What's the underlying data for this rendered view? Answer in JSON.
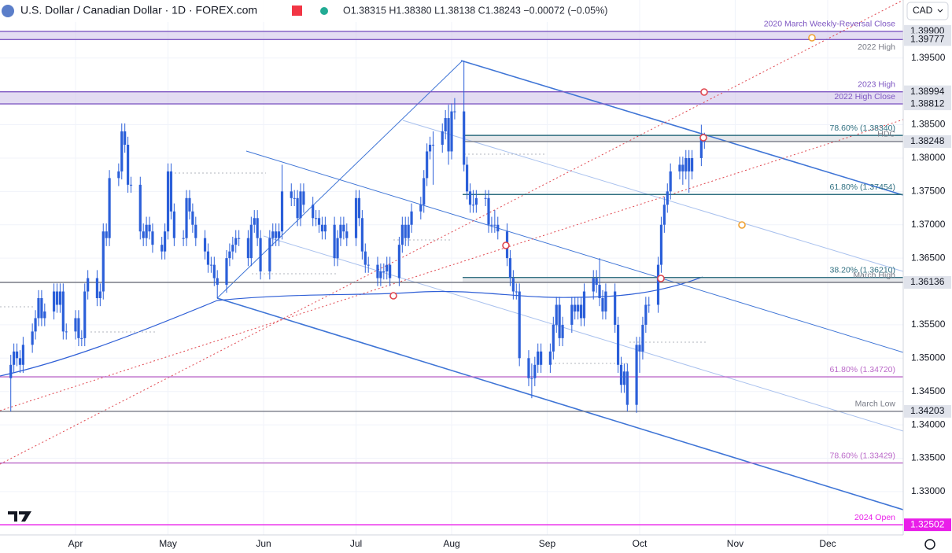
{
  "chart_data": {
    "type": "candlestick",
    "symbol": "U.S. Dollar / Canadian Dollar · 1D · FOREX.com",
    "ohlc_text": "O1.38315 H1.38380 L1.38138 C1.38243 −0.00072 (−0.05%)",
    "currency": "CAD",
    "annotations": [
      "2022 High"
    ],
    "color": "#2b5fd9",
    "grid": true,
    "xlim": [
      67.5,
      360.5
    ],
    "xticks": [
      {
        "value": 92,
        "label": "Apr"
      },
      {
        "value": 122,
        "label": "May"
      },
      {
        "value": 153,
        "label": "Jun"
      },
      {
        "value": 183,
        "label": "Jul"
      },
      {
        "value": 214,
        "label": "Aug"
      },
      {
        "value": 245,
        "label": "Sep"
      },
      {
        "value": 275,
        "label": "Oct"
      },
      {
        "value": 306,
        "label": "Nov"
      },
      {
        "value": 336,
        "label": "Dec"
      }
    ],
    "ylim": [
      1.3235,
      1.4037
    ],
    "yticks": [
      {
        "value": 1.33,
        "label": "1.33000"
      },
      {
        "value": 1.335,
        "label": "1.33500"
      },
      {
        "value": 1.34,
        "label": "1.34000"
      },
      {
        "value": 1.345,
        "label": "1.34500"
      },
      {
        "value": 1.35,
        "label": "1.35000"
      },
      {
        "value": 1.355,
        "label": "1.35500"
      },
      {
        "value": 1.365,
        "label": "1.36500"
      },
      {
        "value": 1.37,
        "label": "1.37000"
      },
      {
        "value": 1.375,
        "label": "1.37500"
      },
      {
        "value": 1.38,
        "label": "1.38000"
      },
      {
        "value": 1.385,
        "label": "1.38500"
      },
      {
        "value": 1.395,
        "label": "1.39500"
      }
    ],
    "levels": [
      {
        "value": 1.399,
        "price_label": "1.39900",
        "text": "2020 March Weekly-Reversal Close",
        "color": "#7e57c2",
        "band": "#d1c4e9"
      },
      {
        "value": 1.39777,
        "price_label": "1.39777",
        "color": "#7e57c2"
      },
      {
        "value": 1.38994,
        "price_label": "1.38994",
        "text": "2023 High",
        "color": "#7e57c2",
        "band": "#d1c4e9"
      },
      {
        "value": 1.38812,
        "price_label": "1.38812",
        "text": "2022 High Close",
        "color": "#7e57c2"
      },
      {
        "value": 1.3834,
        "text": "78.60% (1.38340)",
        "color": "#2f6f80",
        "band": "#d6d8de",
        "fib": true
      },
      {
        "value": 1.38248,
        "price_label": "1.38248",
        "text": "HDC",
        "color": "#787b86",
        "fib": true
      },
      {
        "value": 1.37454,
        "text": "61.80% (1.37454)",
        "color": "#2f6f80",
        "fib": true
      },
      {
        "value": 1.3621,
        "text": "38.20% (1.36210)",
        "color": "#2f6f80",
        "band": "#d6d8de",
        "fib": true
      },
      {
        "value": 1.36136,
        "price_label": "1.36136",
        "text": "March High",
        "color": "#787b86"
      },
      {
        "value": 1.3472,
        "text": "61.80% (1.34720)",
        "color": "#ba68c8"
      },
      {
        "value": 1.34203,
        "price_label": "1.34203",
        "text": "March Low",
        "color": "#787b86"
      },
      {
        "value": 1.33429,
        "text": "78.60% (1.33429)",
        "color": "#ba68c8"
      },
      {
        "value": 1.32502,
        "price_label": "1.32502",
        "text": "2024 Open",
        "color": "#e91ee9"
      }
    ],
    "x": [
      71,
      72,
      73,
      74,
      75,
      78,
      79,
      80,
      81,
      82,
      85,
      86,
      87,
      88,
      89,
      92,
      93,
      94,
      95,
      96,
      99,
      100,
      101,
      102,
      103,
      106,
      107,
      108,
      109,
      110,
      113,
      114,
      115,
      116,
      117,
      120,
      121,
      122,
      123,
      124,
      127,
      128,
      129,
      130,
      131,
      134,
      135,
      136,
      137,
      138,
      141,
      142,
      143,
      144,
      145,
      148,
      149,
      150,
      151,
      152,
      155,
      156,
      157,
      158,
      159,
      162,
      163,
      164,
      165,
      166,
      169,
      170,
      171,
      172,
      173,
      176,
      177,
      178,
      179,
      180,
      183,
      184,
      185,
      186,
      187,
      190,
      191,
      192,
      193,
      194,
      197,
      198,
      199,
      200,
      201,
      204,
      205,
      206,
      207,
      208,
      211,
      212,
      213,
      214,
      215,
      218,
      219,
      220,
      221,
      222,
      225,
      226,
      227,
      228,
      229,
      232,
      233,
      234,
      235,
      236,
      239,
      240,
      241,
      242,
      243,
      246,
      247,
      248,
      249,
      250,
      253,
      254,
      255,
      256,
      257,
      260,
      261,
      262,
      263,
      264,
      267,
      268,
      269,
      270,
      271,
      274,
      275,
      276,
      277,
      278,
      281,
      282,
      283,
      284,
      285,
      288,
      289,
      290,
      291,
      292,
      295,
      296
    ],
    "ohlc": [
      [
        1.347,
        1.3505,
        1.342,
        1.349
      ],
      [
        1.349,
        1.3522,
        1.3478,
        1.351
      ],
      [
        1.351,
        1.3522,
        1.3488,
        1.35
      ],
      [
        1.35,
        1.3512,
        1.3478,
        1.349
      ],
      [
        1.349,
        1.3532,
        1.3478,
        1.352
      ],
      [
        1.352,
        1.3552,
        1.3508,
        1.354
      ],
      [
        1.354,
        1.3572,
        1.3528,
        1.356
      ],
      [
        1.356,
        1.3602,
        1.3548,
        1.359
      ],
      [
        1.359,
        1.3602,
        1.3548,
        1.356
      ],
      [
        1.356,
        1.3582,
        1.3548,
        1.357
      ],
      [
        1.357,
        1.3612,
        1.3558,
        1.36
      ],
      [
        1.36,
        1.3612,
        1.3568,
        1.358
      ],
      [
        1.358,
        1.3612,
        1.3568,
        1.36
      ],
      [
        1.36,
        1.3612,
        1.3528,
        1.354
      ],
      [
        1.354,
        1.3552,
        1.3528,
        1.354
      ],
      [
        1.354,
        1.3572,
        1.3528,
        1.356
      ],
      [
        1.356,
        1.3572,
        1.3518,
        1.353
      ],
      [
        1.353,
        1.3542,
        1.3518,
        1.353
      ],
      [
        1.353,
        1.3612,
        1.3518,
        1.36
      ],
      [
        1.36,
        1.3632,
        1.3588,
        1.362
      ],
      [
        1.362,
        1.3632,
        1.3578,
        1.359
      ],
      [
        1.359,
        1.3612,
        1.3578,
        1.36
      ],
      [
        1.36,
        1.3702,
        1.3588,
        1.369
      ],
      [
        1.369,
        1.3702,
        1.3668,
        1.368
      ],
      [
        1.368,
        1.3782,
        1.3668,
        1.377
      ],
      [
        1.377,
        1.3792,
        1.3758,
        1.378
      ],
      [
        1.378,
        1.3852,
        1.3768,
        1.384
      ],
      [
        1.384,
        1.3852,
        1.3808,
        1.382
      ],
      [
        1.382,
        1.3832,
        1.3748,
        1.376
      ],
      [
        1.376,
        1.3772,
        1.3748,
        1.376
      ],
      [
        1.376,
        1.3772,
        1.3678,
        1.369
      ],
      [
        1.369,
        1.3702,
        1.3668,
        1.368
      ],
      [
        1.368,
        1.3712,
        1.3668,
        1.37
      ],
      [
        1.37,
        1.3712,
        1.3678,
        1.369
      ],
      [
        1.369,
        1.3702,
        1.3658,
        1.367
      ],
      [
        1.367,
        1.3682,
        1.3648,
        1.366
      ],
      [
        1.366,
        1.3702,
        1.3648,
        1.369
      ],
      [
        1.369,
        1.3792,
        1.3678,
        1.378
      ],
      [
        1.378,
        1.3792,
        1.3708,
        1.372
      ],
      [
        1.372,
        1.3732,
        1.3668,
        1.368
      ],
      [
        1.368,
        1.3692,
        1.3668,
        1.368
      ],
      [
        1.368,
        1.3752,
        1.3668,
        1.374
      ],
      [
        1.374,
        1.3752,
        1.3708,
        1.372
      ],
      [
        1.372,
        1.3732,
        1.3688,
        1.37
      ],
      [
        1.37,
        1.3712,
        1.3668,
        1.368
      ],
      [
        1.368,
        1.3692,
        1.3648,
        1.366
      ],
      [
        1.366,
        1.3672,
        1.3628,
        1.364
      ],
      [
        1.364,
        1.3652,
        1.3628,
        1.364
      ],
      [
        1.364,
        1.3652,
        1.3608,
        1.362
      ],
      [
        1.362,
        1.3632,
        1.359,
        1.361
      ],
      [
        1.361,
        1.3662,
        1.3598,
        1.365
      ],
      [
        1.365,
        1.3672,
        1.3638,
        1.366
      ],
      [
        1.366,
        1.3682,
        1.3648,
        1.367
      ],
      [
        1.367,
        1.3692,
        1.3658,
        1.368
      ],
      [
        1.368,
        1.3692,
        1.3668,
        1.368
      ],
      [
        1.368,
        1.3692,
        1.3638,
        1.365
      ],
      [
        1.365,
        1.3712,
        1.3638,
        1.37
      ],
      [
        1.37,
        1.3722,
        1.3688,
        1.371
      ],
      [
        1.371,
        1.3722,
        1.3668,
        1.368
      ],
      [
        1.368,
        1.3692,
        1.3618,
        1.363
      ],
      [
        1.363,
        1.3692,
        1.3618,
        1.368
      ],
      [
        1.368,
        1.3702,
        1.3668,
        1.369
      ],
      [
        1.369,
        1.3702,
        1.3668,
        1.368
      ],
      [
        1.368,
        1.3702,
        1.3668,
        1.369
      ],
      [
        1.369,
        1.379,
        1.3678,
        1.375
      ],
      [
        1.375,
        1.3762,
        1.3728,
        1.374
      ],
      [
        1.374,
        1.3752,
        1.3728,
        1.374
      ],
      [
        1.374,
        1.3752,
        1.3698,
        1.371
      ],
      [
        1.371,
        1.3762,
        1.3698,
        1.375
      ],
      [
        1.375,
        1.3762,
        1.3718,
        1.373
      ],
      [
        1.373,
        1.3742,
        1.3698,
        1.371
      ],
      [
        1.371,
        1.3722,
        1.3698,
        1.371
      ],
      [
        1.371,
        1.3722,
        1.3688,
        1.37
      ],
      [
        1.37,
        1.3712,
        1.3678,
        1.369
      ],
      [
        1.369,
        1.3712,
        1.3678,
        1.37
      ],
      [
        1.37,
        1.3712,
        1.3638,
        1.365
      ],
      [
        1.365,
        1.3692,
        1.3638,
        1.368
      ],
      [
        1.368,
        1.3712,
        1.3668,
        1.37
      ],
      [
        1.37,
        1.3712,
        1.3678,
        1.369
      ],
      [
        1.369,
        1.3702,
        1.3668,
        1.368
      ],
      [
        1.368,
        1.3752,
        1.3668,
        1.374
      ],
      [
        1.374,
        1.3752,
        1.3698,
        1.371
      ],
      [
        1.371,
        1.3722,
        1.3648,
        1.366
      ],
      [
        1.366,
        1.3672,
        1.3628,
        1.364
      ],
      [
        1.364,
        1.3652,
        1.3628,
        1.364
      ],
      [
        1.364,
        1.3652,
        1.3608,
        1.362
      ],
      [
        1.362,
        1.3642,
        1.3608,
        1.363
      ],
      [
        1.363,
        1.3642,
        1.3618,
        1.363
      ],
      [
        1.363,
        1.3652,
        1.3618,
        1.364
      ],
      [
        1.364,
        1.3652,
        1.3608,
        1.362
      ],
      [
        1.362,
        1.3682,
        1.3608,
        1.367
      ],
      [
        1.367,
        1.3712,
        1.3658,
        1.37
      ],
      [
        1.37,
        1.3712,
        1.3668,
        1.368
      ],
      [
        1.368,
        1.3712,
        1.3668,
        1.37
      ],
      [
        1.37,
        1.3732,
        1.3688,
        1.372
      ],
      [
        1.372,
        1.3742,
        1.3708,
        1.373
      ],
      [
        1.373,
        1.3782,
        1.3718,
        1.377
      ],
      [
        1.377,
        1.3822,
        1.3758,
        1.381
      ],
      [
        1.381,
        1.3832,
        1.3798,
        1.382
      ],
      [
        1.382,
        1.384,
        1.376,
        1.382
      ],
      [
        1.382,
        1.3852,
        1.3808,
        1.384
      ],
      [
        1.384,
        1.3872,
        1.3828,
        1.386
      ],
      [
        1.386,
        1.388,
        1.379,
        1.381
      ],
      [
        1.381,
        1.3882,
        1.3798,
        1.387
      ],
      [
        1.387,
        1.389,
        1.3858,
        1.387
      ],
      [
        1.387,
        1.3946,
        1.378,
        1.379
      ],
      [
        1.379,
        1.3802,
        1.3738,
        1.375
      ],
      [
        1.375,
        1.3762,
        1.3718,
        1.373
      ],
      [
        1.373,
        1.3752,
        1.3718,
        1.373
      ],
      [
        1.373,
        1.3752,
        1.3718,
        1.374
      ],
      [
        1.374,
        1.3752,
        1.3728,
        1.374
      ],
      [
        1.374,
        1.3752,
        1.3688,
        1.37
      ],
      [
        1.37,
        1.3712,
        1.3688,
        1.37
      ],
      [
        1.37,
        1.3722,
        1.3688,
        1.37
      ],
      [
        1.37,
        1.3712,
        1.3678,
        1.369
      ],
      [
        1.369,
        1.3702,
        1.3638,
        1.365
      ],
      [
        1.365,
        1.3662,
        1.3608,
        1.362
      ],
      [
        1.362,
        1.3632,
        1.3588,
        1.36
      ],
      [
        1.36,
        1.3612,
        1.3588,
        1.36
      ],
      [
        1.36,
        1.3612,
        1.3488,
        1.35
      ],
      [
        1.35,
        1.3512,
        1.3458,
        1.347
      ],
      [
        1.347,
        1.3492,
        1.344,
        1.347
      ],
      [
        1.347,
        1.3502,
        1.3458,
        1.349
      ],
      [
        1.349,
        1.3522,
        1.3478,
        1.351
      ],
      [
        1.351,
        1.3522,
        1.3478,
        1.349
      ],
      [
        1.349,
        1.3522,
        1.3478,
        1.351
      ],
      [
        1.351,
        1.3562,
        1.3498,
        1.355
      ],
      [
        1.355,
        1.3592,
        1.3538,
        1.358
      ],
      [
        1.358,
        1.3592,
        1.3518,
        1.353
      ],
      [
        1.353,
        1.3562,
        1.3518,
        1.355
      ],
      [
        1.355,
        1.3592,
        1.3538,
        1.358
      ],
      [
        1.358,
        1.3592,
        1.3558,
        1.357
      ],
      [
        1.357,
        1.3592,
        1.3558,
        1.358
      ],
      [
        1.358,
        1.3592,
        1.3548,
        1.356
      ],
      [
        1.356,
        1.3612,
        1.3548,
        1.36
      ],
      [
        1.36,
        1.3632,
        1.3588,
        1.362
      ],
      [
        1.362,
        1.3632,
        1.3598,
        1.361
      ],
      [
        1.361,
        1.365,
        1.3578,
        1.359
      ],
      [
        1.359,
        1.3602,
        1.3558,
        1.357
      ],
      [
        1.357,
        1.3612,
        1.3558,
        1.36
      ],
      [
        1.36,
        1.3612,
        1.3538,
        1.355
      ],
      [
        1.355,
        1.3562,
        1.3478,
        1.349
      ],
      [
        1.349,
        1.3502,
        1.3448,
        1.346
      ],
      [
        1.346,
        1.3492,
        1.3448,
        1.348
      ],
      [
        1.348,
        1.3492,
        1.342,
        1.343
      ],
      [
        1.343,
        1.3532,
        1.3418,
        1.352
      ],
      [
        1.352,
        1.3532,
        1.3478,
        1.351
      ],
      [
        1.351,
        1.3562,
        1.3498,
        1.355
      ],
      [
        1.355,
        1.3592,
        1.3538,
        1.358
      ],
      [
        1.358,
        1.3592,
        1.3568,
        1.358
      ],
      [
        1.358,
        1.3652,
        1.3568,
        1.364
      ],
      [
        1.364,
        1.3712,
        1.3628,
        1.37
      ],
      [
        1.37,
        1.3742,
        1.3688,
        1.373
      ],
      [
        1.373,
        1.3762,
        1.3718,
        1.375
      ],
      [
        1.375,
        1.3792,
        1.3738,
        1.378
      ],
      [
        1.378,
        1.3802,
        1.3768,
        1.379
      ],
      [
        1.379,
        1.3802,
        1.376,
        1.378
      ],
      [
        1.378,
        1.3812,
        1.3768,
        1.38
      ],
      [
        1.38,
        1.3812,
        1.3748,
        1.378
      ],
      [
        1.378,
        1.3812,
        1.3768,
        1.38
      ],
      [
        1.38,
        1.385,
        1.3788,
        1.38315
      ],
      [
        1.38315,
        1.3838,
        1.38138,
        1.38243
      ]
    ]
  }
}
